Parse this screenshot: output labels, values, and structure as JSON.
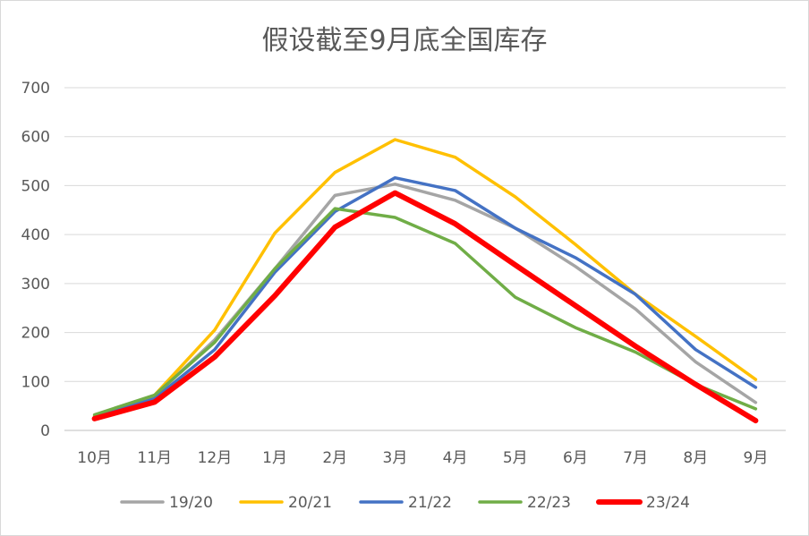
{
  "chart_data": {
    "type": "line",
    "title": "假设截至9月底全国库存",
    "xlabel": "",
    "ylabel": "",
    "categories": [
      "10月",
      "11月",
      "12月",
      "1月",
      "2月",
      "3月",
      "4月",
      "5月",
      "6月",
      "7月",
      "8月",
      "9月"
    ],
    "ylim": [
      0,
      700
    ],
    "yticks": [
      "0",
      "100",
      "200",
      "300",
      "400",
      "500",
      "600",
      "700"
    ],
    "grid": true,
    "legend_position": "bottom",
    "series": [
      {
        "name": "19/20",
        "color": "#A5A5A5",
        "values": [
          28,
          70,
          185,
          330,
          480,
          503,
          470,
          413,
          335,
          248,
          140,
          57
        ]
      },
      {
        "name": "20/21",
        "color": "#FFC000",
        "values": [
          30,
          72,
          205,
          403,
          527,
          594,
          558,
          477,
          380,
          278,
          192,
          104
        ]
      },
      {
        "name": "21/22",
        "color": "#4472C4",
        "values": [
          27,
          65,
          165,
          323,
          447,
          516,
          490,
          413,
          353,
          278,
          165,
          88
        ]
      },
      {
        "name": "22/23",
        "color": "#70AD47",
        "values": [
          32,
          72,
          180,
          330,
          453,
          435,
          382,
          272,
          210,
          160,
          94,
          44
        ]
      },
      {
        "name": "23/24",
        "color": "#FF0000",
        "values": [
          24,
          58,
          150,
          275,
          415,
          485,
          422,
          338,
          255,
          172,
          94,
          20
        ]
      }
    ]
  }
}
